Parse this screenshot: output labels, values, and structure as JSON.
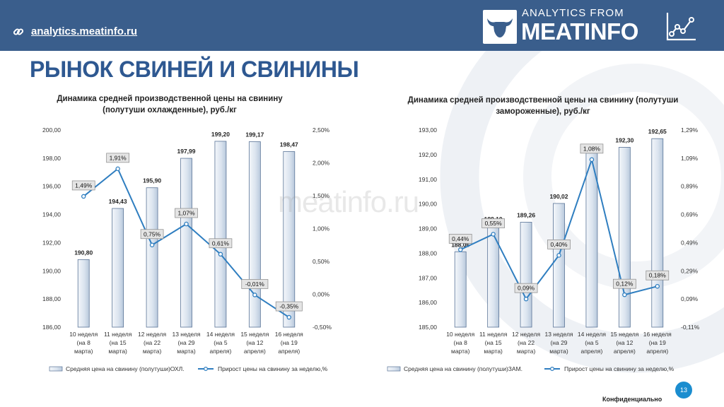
{
  "header": {
    "url": "analytics.meatinfo.ru",
    "brand_top": "ANALYTICS FROM",
    "brand_main": "MEATINFO"
  },
  "page_title": "РЫНОК СВИНЕЙ И СВИНИНЫ",
  "watermark": "meatinfo.ru",
  "footer": {
    "page_number": "13",
    "confidential": "Конфиденциально"
  },
  "colors": {
    "header_bg": "#3a5e8c",
    "title": "#2e5891",
    "bar_fill_light": "#f3f6fa",
    "bar_fill_dark": "#b9c9dc",
    "bar_stroke": "#5a7497",
    "line": "#2f7ec0",
    "badge": "#1b8dcf"
  },
  "chart_data": [
    {
      "type": "bar+line",
      "title_lines": [
        "Динамика средней производственной цены на свинину",
        "(полутуши охлажденные),  руб./кг"
      ],
      "categories": [
        [
          "10 неделя",
          "(на 8",
          "марта)"
        ],
        [
          "11 неделя",
          "(на 15",
          "марта)"
        ],
        [
          "12 неделя",
          "(на 22",
          "марта)"
        ],
        [
          "13 неделя",
          "(на 29",
          "марта)"
        ],
        [
          "14 неделя",
          "(на 5",
          "апреля)"
        ],
        [
          "15 неделя",
          "(на 12",
          "апреля)"
        ],
        [
          "16 неделя",
          "(на 19",
          "апреля)"
        ]
      ],
      "bar_series": {
        "name": "Средняя цена на свинину (полутуши)ОХЛ.",
        "values": [
          190.8,
          194.43,
          195.9,
          197.99,
          199.2,
          199.17,
          198.47
        ],
        "labels": [
          "190,80",
          "194,43",
          "195,90",
          "197,99",
          "199,20",
          "199,17",
          "198,47"
        ]
      },
      "line_series": {
        "name": "Прирост цены на свинину за неделю,%",
        "values": [
          1.49,
          1.91,
          0.75,
          1.07,
          0.61,
          -0.01,
          -0.35
        ],
        "labels": [
          "1,49%",
          "1,91%",
          "0,75%",
          "1,07%",
          "0,61%",
          "-0,01%",
          "-0,35%"
        ]
      },
      "y_left": {
        "min": 186,
        "max": 200,
        "ticks": [
          "186,00",
          "188,00",
          "190,00",
          "192,00",
          "194,00",
          "196,00",
          "198,00",
          "200,00"
        ]
      },
      "y_right": {
        "min": -0.5,
        "max": 2.5,
        "ticks": [
          "-0,50%",
          "0,00%",
          "0,50%",
          "1,00%",
          "1,50%",
          "2,00%",
          "2,50%"
        ]
      },
      "legend": "bottom"
    },
    {
      "type": "bar+line",
      "title_lines": [
        "Динамика средней производственной цены на свинину (полутуши",
        "замороженные),  руб./кг"
      ],
      "categories": [
        [
          "10 неделя",
          "(на 8",
          "марта)"
        ],
        [
          "11 неделя",
          "(на 15",
          "марта)"
        ],
        [
          "12 неделя",
          "(на 22",
          "марта)"
        ],
        [
          "13 неделя",
          "(на 29",
          "марта)"
        ],
        [
          "14 неделя",
          "(на 5",
          "апреля)"
        ],
        [
          "15 неделя",
          "(на 12",
          "апреля)"
        ],
        [
          "16 неделя",
          "(на 19",
          "апреля)"
        ]
      ],
      "bar_series": {
        "name": "Средняя цена на свинину (полутуши)ЗАМ.",
        "values": [
          188.06,
          189.1,
          189.26,
          190.02,
          192.06,
          192.3,
          192.65
        ],
        "labels": [
          "188,06",
          "189,10",
          "189,26",
          "190,02",
          "192,06",
          "192,30",
          "192,65"
        ]
      },
      "line_series": {
        "name": "Прирост цены на свинину за неделю,%",
        "values": [
          0.44,
          0.55,
          0.09,
          0.4,
          1.08,
          0.12,
          0.18
        ],
        "labels": [
          "0,44%",
          "0,55%",
          "0,09%",
          "0,40%",
          "1,08%",
          "0,12%",
          "0,18%"
        ]
      },
      "y_left": {
        "min": 185,
        "max": 193,
        "ticks": [
          "185,00",
          "186,00",
          "187,00",
          "188,00",
          "189,00",
          "190,00",
          "191,00",
          "192,00",
          "193,00"
        ]
      },
      "y_right": {
        "min": -0.11,
        "max": 1.29,
        "ticks": [
          "-0,11%",
          "0,09%",
          "0,29%",
          "0,49%",
          "0,69%",
          "0,89%",
          "1,09%",
          "1,29%"
        ]
      },
      "legend": "bottom"
    }
  ]
}
